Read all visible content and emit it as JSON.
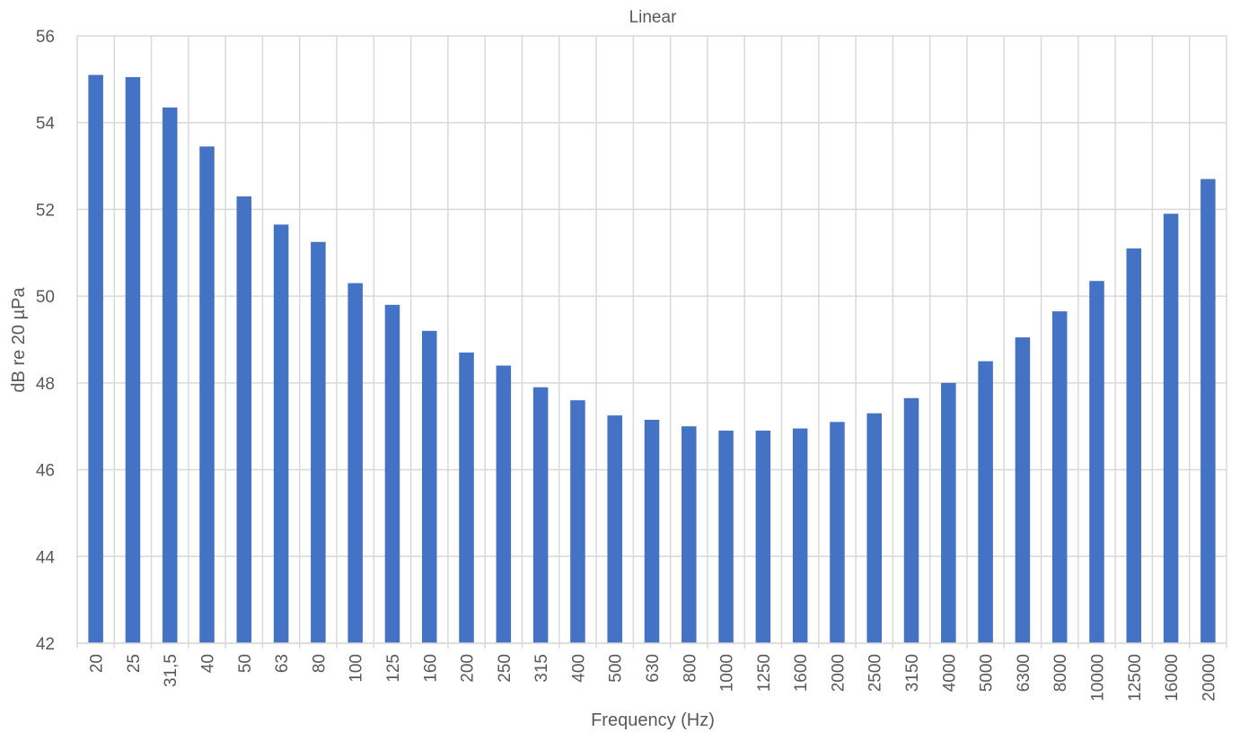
{
  "chart_data": {
    "type": "bar",
    "title": "Linear",
    "xlabel": "Frequency (Hz)",
    "ylabel": "dB re 20 µPa",
    "ylim": [
      42,
      56
    ],
    "yticks": [
      42,
      44,
      46,
      48,
      50,
      52,
      54,
      56
    ],
    "grid": true,
    "legend": "none",
    "bar_color": "#4472c4",
    "categories": [
      "20",
      "25",
      "31,5",
      "40",
      "50",
      "63",
      "80",
      "100",
      "125",
      "160",
      "200",
      "250",
      "315",
      "400",
      "500",
      "630",
      "800",
      "1000",
      "1250",
      "1600",
      "2000",
      "2500",
      "3150",
      "4000",
      "5000",
      "6300",
      "8000",
      "10000",
      "12500",
      "16000",
      "20000"
    ],
    "values": [
      55.1,
      55.05,
      54.35,
      53.45,
      52.3,
      51.65,
      51.25,
      50.3,
      49.8,
      49.2,
      48.7,
      48.4,
      47.9,
      47.6,
      47.25,
      47.15,
      47.0,
      46.9,
      46.9,
      46.95,
      47.1,
      47.3,
      47.65,
      48.0,
      48.5,
      49.05,
      49.65,
      50.35,
      51.1,
      51.9,
      52.7
    ]
  }
}
